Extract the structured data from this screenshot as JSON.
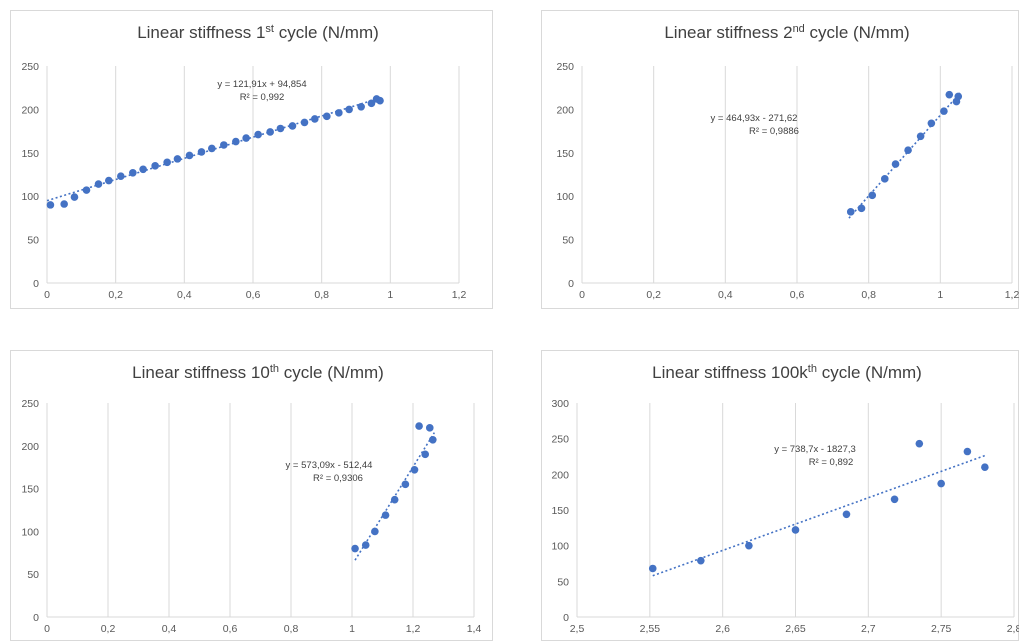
{
  "colors": {
    "marker": "#4472c4",
    "grid": "#d9d9d9",
    "text": "#404040"
  },
  "chart_data": [
    {
      "type": "scatter",
      "title": "Linear stiffness 1st cycle (N/mm)",
      "title_parts": {
        "pre": "Linear stiffness 1",
        "sup": "st",
        "post": " cycle (N/mm)"
      },
      "xlim": [
        0,
        1.2
      ],
      "xticks": [
        0,
        0.2,
        0.4,
        0.6,
        0.8,
        1,
        1.2
      ],
      "xtick_labels": [
        "0",
        "0,2",
        "0,4",
        "0,6",
        "0,8",
        "1",
        "1,2"
      ],
      "ylim": [
        0,
        250
      ],
      "yticks": [
        0,
        50,
        100,
        150,
        200,
        250
      ],
      "ytick_labels": [
        "0",
        "50",
        "100",
        "150",
        "200",
        "250"
      ],
      "grid": "vertical",
      "trendline": {
        "type": "linear",
        "slope": 121.91,
        "intercept": 94.854,
        "x_range": [
          0,
          0.97
        ]
      },
      "annotations": [
        "y = 121,91x + 94,854",
        "R² = 0,992"
      ],
      "points": [
        [
          0.01,
          90
        ],
        [
          0.05,
          91
        ],
        [
          0.08,
          99
        ],
        [
          0.115,
          107
        ],
        [
          0.15,
          114
        ],
        [
          0.18,
          118
        ],
        [
          0.215,
          123
        ],
        [
          0.25,
          127
        ],
        [
          0.28,
          131
        ],
        [
          0.315,
          135
        ],
        [
          0.35,
          139
        ],
        [
          0.38,
          143
        ],
        [
          0.415,
          147
        ],
        [
          0.45,
          151
        ],
        [
          0.48,
          155
        ],
        [
          0.515,
          159
        ],
        [
          0.55,
          163
        ],
        [
          0.58,
          167
        ],
        [
          0.615,
          171
        ],
        [
          0.65,
          174
        ],
        [
          0.68,
          178
        ],
        [
          0.715,
          181
        ],
        [
          0.75,
          185
        ],
        [
          0.78,
          189
        ],
        [
          0.815,
          192
        ],
        [
          0.85,
          196
        ],
        [
          0.88,
          200
        ],
        [
          0.915,
          203
        ],
        [
          0.945,
          207
        ],
        [
          0.96,
          212
        ],
        [
          0.97,
          210
        ]
      ]
    },
    {
      "type": "scatter",
      "title": "Linear stiffness 2nd cycle (N/mm)",
      "title_parts": {
        "pre": "Linear stiffness 2",
        "sup": "nd",
        "post": " cycle (N/mm)"
      },
      "xlim": [
        0,
        1.2
      ],
      "xticks": [
        0,
        0.2,
        0.4,
        0.6,
        0.8,
        1,
        1.2
      ],
      "xtick_labels": [
        "0",
        "0,2",
        "0,4",
        "0,6",
        "0,8",
        "1",
        "1,2"
      ],
      "ylim": [
        0,
        250
      ],
      "yticks": [
        0,
        50,
        100,
        150,
        200,
        250
      ],
      "ytick_labels": [
        "0",
        "50",
        "100",
        "150",
        "200",
        "250"
      ],
      "grid": "vertical",
      "trendline": {
        "type": "linear",
        "slope": 464.93,
        "intercept": -271.62,
        "x_range": [
          0.745,
          1.055
        ]
      },
      "annotations": [
        "y = 464,93x - 271,62",
        "R² = 0,9886"
      ],
      "points": [
        [
          0.75,
          82
        ],
        [
          0.78,
          86
        ],
        [
          0.81,
          101
        ],
        [
          0.845,
          120
        ],
        [
          0.875,
          137
        ],
        [
          0.91,
          153
        ],
        [
          0.945,
          169
        ],
        [
          0.975,
          184
        ],
        [
          1.01,
          198
        ],
        [
          1.025,
          217
        ],
        [
          1.045,
          209
        ],
        [
          1.05,
          215
        ]
      ]
    },
    {
      "type": "scatter",
      "title": "Linear stiffness 10th cycle (N/mm)",
      "title_parts": {
        "pre": "Linear stiffness 10",
        "sup": "th",
        "post": " cycle (N/mm)"
      },
      "xlim": [
        0,
        1.4
      ],
      "xticks": [
        0,
        0.2,
        0.4,
        0.6,
        0.8,
        1,
        1.2,
        1.4
      ],
      "xtick_labels": [
        "0",
        "0,2",
        "0,4",
        "0,6",
        "0,8",
        "1",
        "1,2",
        "1,4"
      ],
      "ylim": [
        0,
        250
      ],
      "yticks": [
        0,
        50,
        100,
        150,
        200,
        250
      ],
      "ytick_labels": [
        "0",
        "50",
        "100",
        "150",
        "200",
        "250"
      ],
      "grid": "vertical",
      "trendline": {
        "type": "linear",
        "slope": 573.09,
        "intercept": -512.44,
        "x_range": [
          1.01,
          1.27
        ]
      },
      "annotations": [
        "y = 573,09x - 512,44",
        "R² = 0,9306"
      ],
      "points": [
        [
          1.01,
          80
        ],
        [
          1.045,
          84
        ],
        [
          1.075,
          100
        ],
        [
          1.11,
          119
        ],
        [
          1.14,
          137
        ],
        [
          1.175,
          155
        ],
        [
          1.205,
          172
        ],
        [
          1.22,
          223
        ],
        [
          1.24,
          190
        ],
        [
          1.255,
          221
        ],
        [
          1.265,
          207
        ]
      ]
    },
    {
      "type": "scatter",
      "title": "Linear stiffness 100kth cycle (N/mm)",
      "title_parts": {
        "pre": "Linear stiffness 100k",
        "sup": "th",
        "post": " cycle (N/mm)"
      },
      "xlim": [
        2.5,
        2.8
      ],
      "xticks": [
        2.5,
        2.55,
        2.6,
        2.65,
        2.7,
        2.75,
        2.8
      ],
      "xtick_labels": [
        "2,5",
        "2,55",
        "2,6",
        "2,65",
        "2,7",
        "2,75",
        "2,8"
      ],
      "ylim": [
        0,
        300
      ],
      "yticks": [
        0,
        50,
        100,
        150,
        200,
        250,
        300
      ],
      "ytick_labels": [
        "0",
        "50",
        "100",
        "150",
        "200",
        "250",
        "300"
      ],
      "grid": "vertical",
      "trendline": {
        "type": "linear",
        "slope": 738.7,
        "intercept": -1827.3,
        "x_range": [
          2.552,
          2.78
        ]
      },
      "annotations": [
        "y = 738,7x - 1827,3",
        "R² = 0,892"
      ],
      "points": [
        [
          2.552,
          68
        ],
        [
          2.585,
          79
        ],
        [
          2.618,
          100
        ],
        [
          2.65,
          122
        ],
        [
          2.685,
          144
        ],
        [
          2.718,
          165
        ],
        [
          2.735,
          243
        ],
        [
          2.75,
          187
        ],
        [
          2.768,
          232
        ],
        [
          2.78,
          210
        ]
      ]
    }
  ]
}
